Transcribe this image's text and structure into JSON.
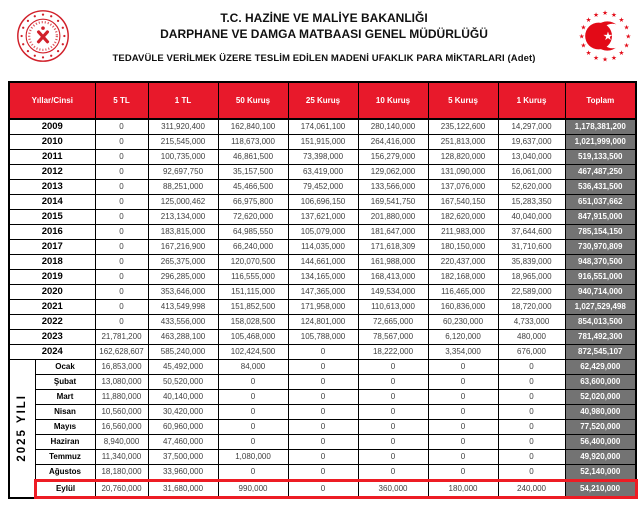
{
  "header": {
    "title_line1": "T.C. HAZİNE VE MALİYE BAKANLIĞI",
    "title_line2": "DARPHANE VE DAMGA MATBAASI GENEL MÜDÜRLÜĞÜ",
    "subtitle": "TEDAVÜLE VERİLMEK ÜZERE TESLİM EDİLEN MADENİ UFAKLIK PARA MİKTARLARI (Adet)",
    "logos": {
      "left": "darphane-damga-matbaasi-seal",
      "right": "hazine-maliye-bakanligi-emblem"
    }
  },
  "colors": {
    "header_red": "#e8192b",
    "total_gray": "#737373",
    "highlight_red": "#ed1c24",
    "seal_red": "#d1202a",
    "emblem_red": "#e30a17",
    "value_text": "#3f3f3f"
  },
  "table": {
    "columns": [
      "Yıllar/Cinsi",
      "5 TL",
      "1 TL",
      "50 Kuruş",
      "25 Kuruş",
      "10 Kuruş",
      "5 Kuruş",
      "1 Kuruş",
      "Toplam"
    ],
    "year_group_label": "2025 YILI",
    "year_rows": [
      {
        "label": "2009",
        "values": [
          "0",
          "311,920,400",
          "162,840,100",
          "174,061,100",
          "280,140,000",
          "235,122,600",
          "14,297,000"
        ],
        "total": "1,178,381,200"
      },
      {
        "label": "2010",
        "values": [
          "0",
          "215,545,000",
          "118,673,000",
          "151,915,000",
          "264,416,000",
          "251,813,000",
          "19,637,000"
        ],
        "total": "1,021,999,000"
      },
      {
        "label": "2011",
        "values": [
          "0",
          "100,735,000",
          "46,861,500",
          "73,398,000",
          "156,279,000",
          "128,820,000",
          "13,040,000"
        ],
        "total": "519,133,500"
      },
      {
        "label": "2012",
        "values": [
          "0",
          "92,697,750",
          "35,157,500",
          "63,419,000",
          "129,062,000",
          "131,090,000",
          "16,061,000"
        ],
        "total": "467,487,250"
      },
      {
        "label": "2013",
        "values": [
          "0",
          "88,251,000",
          "45,466,500",
          "79,452,000",
          "133,566,000",
          "137,076,000",
          "52,620,000"
        ],
        "total": "536,431,500"
      },
      {
        "label": "2014",
        "values": [
          "0",
          "125,000,462",
          "66,975,800",
          "106,696,150",
          "169,541,750",
          "167,540,150",
          "15,283,350"
        ],
        "total": "651,037,662"
      },
      {
        "label": "2015",
        "values": [
          "0",
          "213,134,000",
          "72,620,000",
          "137,621,000",
          "201,880,000",
          "182,620,000",
          "40,040,000"
        ],
        "total": "847,915,000"
      },
      {
        "label": "2016",
        "values": [
          "0",
          "183,815,000",
          "64,985,550",
          "105,079,000",
          "181,647,000",
          "211,983,000",
          "37,644,600"
        ],
        "total": "785,154,150"
      },
      {
        "label": "2017",
        "values": [
          "0",
          "167,216,900",
          "66,240,000",
          "114,035,000",
          "171,618,309",
          "180,150,000",
          "31,710,600"
        ],
        "total": "730,970,809"
      },
      {
        "label": "2018",
        "values": [
          "0",
          "265,375,000",
          "120,070,500",
          "144,661,000",
          "161,988,000",
          "220,437,000",
          "35,839,000"
        ],
        "total": "948,370,500"
      },
      {
        "label": "2019",
        "values": [
          "0",
          "296,285,000",
          "116,555,000",
          "134,165,000",
          "168,413,000",
          "182,168,000",
          "18,965,000"
        ],
        "total": "916,551,000"
      },
      {
        "label": "2020",
        "values": [
          "0",
          "353,646,000",
          "151,115,000",
          "147,365,000",
          "149,534,000",
          "116,465,000",
          "22,589,000"
        ],
        "total": "940,714,000"
      },
      {
        "label": "2021",
        "values": [
          "0",
          "413,549,998",
          "151,852,500",
          "171,958,000",
          "110,613,000",
          "160,836,000",
          "18,720,000"
        ],
        "total": "1,027,529,498"
      },
      {
        "label": "2022",
        "values": [
          "0",
          "433,556,000",
          "158,028,500",
          "124,801,000",
          "72,665,000",
          "60,230,000",
          "4,733,000"
        ],
        "total": "854,013,500"
      },
      {
        "label": "2023",
        "values": [
          "21,781,200",
          "463,288,100",
          "105,468,000",
          "105,788,000",
          "78,567,000",
          "6,120,000",
          "480,000"
        ],
        "total": "781,492,300"
      },
      {
        "label": "2024",
        "values": [
          "162,628,607",
          "585,240,000",
          "102,424,500",
          "0",
          "18,222,000",
          "3,354,000",
          "676,000"
        ],
        "total": "872,545,107"
      }
    ],
    "month_rows": [
      {
        "label": "Ocak",
        "values": [
          "16,853,000",
          "45,492,000",
          "84,000",
          "0",
          "0",
          "0",
          "0"
        ],
        "total": "62,429,000",
        "highlight": false
      },
      {
        "label": "Şubat",
        "values": [
          "13,080,000",
          "50,520,000",
          "0",
          "0",
          "0",
          "0",
          "0"
        ],
        "total": "63,600,000",
        "highlight": false
      },
      {
        "label": "Mart",
        "values": [
          "11,880,000",
          "40,140,000",
          "0",
          "0",
          "0",
          "0",
          "0"
        ],
        "total": "52,020,000",
        "highlight": false
      },
      {
        "label": "Nisan",
        "values": [
          "10,560,000",
          "30,420,000",
          "0",
          "0",
          "0",
          "0",
          "0"
        ],
        "total": "40,980,000",
        "highlight": false
      },
      {
        "label": "Mayıs",
        "values": [
          "16,560,000",
          "60,960,000",
          "0",
          "0",
          "0",
          "0",
          "0"
        ],
        "total": "77,520,000",
        "highlight": false
      },
      {
        "label": "Haziran",
        "values": [
          "8,940,000",
          "47,460,000",
          "0",
          "0",
          "0",
          "0",
          "0"
        ],
        "total": "56,400,000",
        "highlight": false
      },
      {
        "label": "Temmuz",
        "values": [
          "11,340,000",
          "37,500,000",
          "1,080,000",
          "0",
          "0",
          "0",
          "0"
        ],
        "total": "49,920,000",
        "highlight": false
      },
      {
        "label": "Ağustos",
        "values": [
          "18,180,000",
          "33,960,000",
          "0",
          "0",
          "0",
          "0",
          "0"
        ],
        "total": "52,140,000",
        "highlight": false
      },
      {
        "label": "Eylül",
        "values": [
          "20,760,000",
          "31,680,000",
          "990,000",
          "0",
          "360,000",
          "180,000",
          "240,000"
        ],
        "total": "54,210,000",
        "highlight": true
      }
    ]
  }
}
